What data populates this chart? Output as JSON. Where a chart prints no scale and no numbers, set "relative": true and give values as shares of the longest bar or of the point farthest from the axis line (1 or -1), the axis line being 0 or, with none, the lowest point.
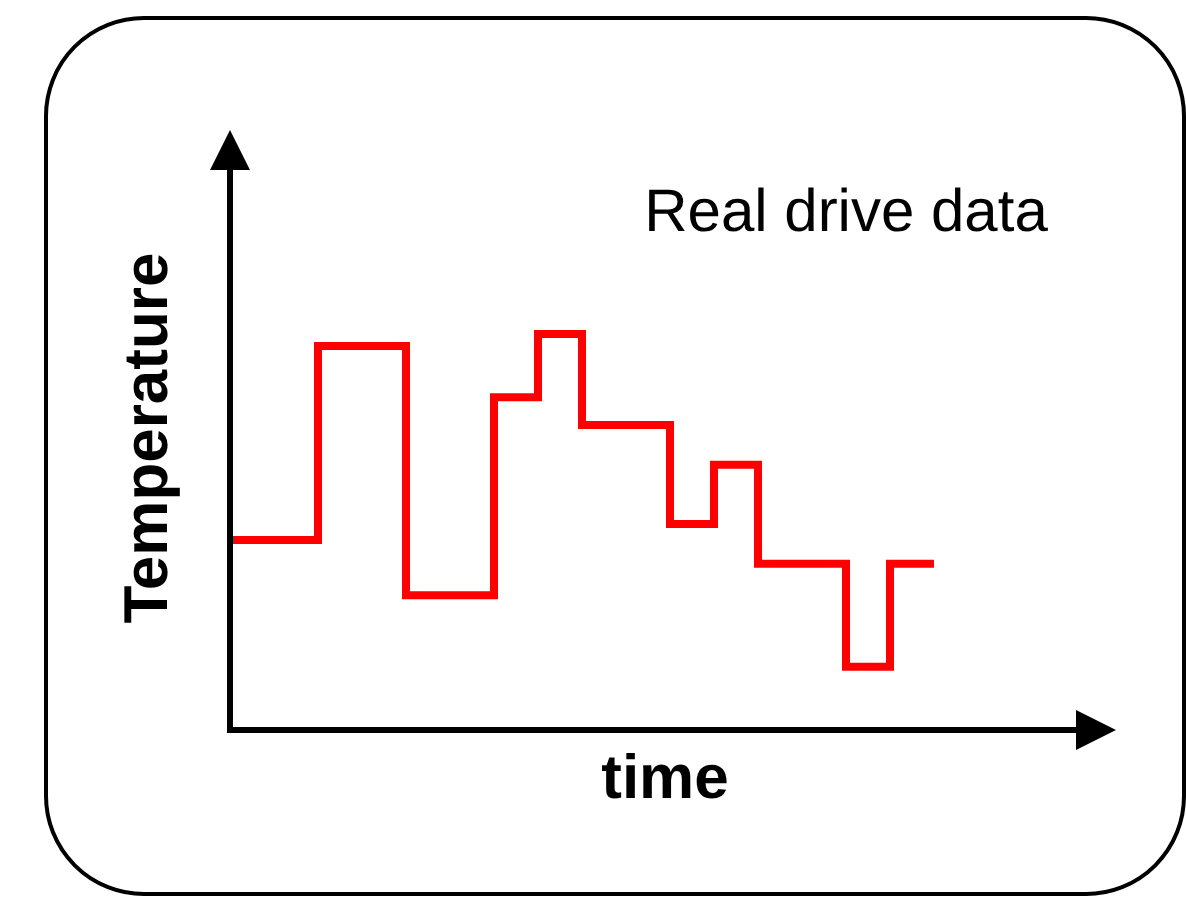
{
  "chart_data": {
    "type": "step",
    "title": "Real drive data",
    "xlabel": "time",
    "ylabel": "Temperature",
    "relative": true,
    "tick_labels": false,
    "categories": [
      null,
      null,
      null,
      null,
      null,
      null,
      null,
      null,
      null,
      null,
      null,
      null,
      null,
      null,
      null,
      null,
      null
    ],
    "series": [
      {
        "color": "#ff0000",
        "values": [
          0.48,
          0.48,
          0.97,
          0.97,
          0.34,
          0.34,
          0.84,
          1,
          0.77,
          0.77,
          0.52,
          0.67,
          0.42,
          0.42,
          0.16,
          0.42,
          0.42
        ]
      }
    ]
  }
}
